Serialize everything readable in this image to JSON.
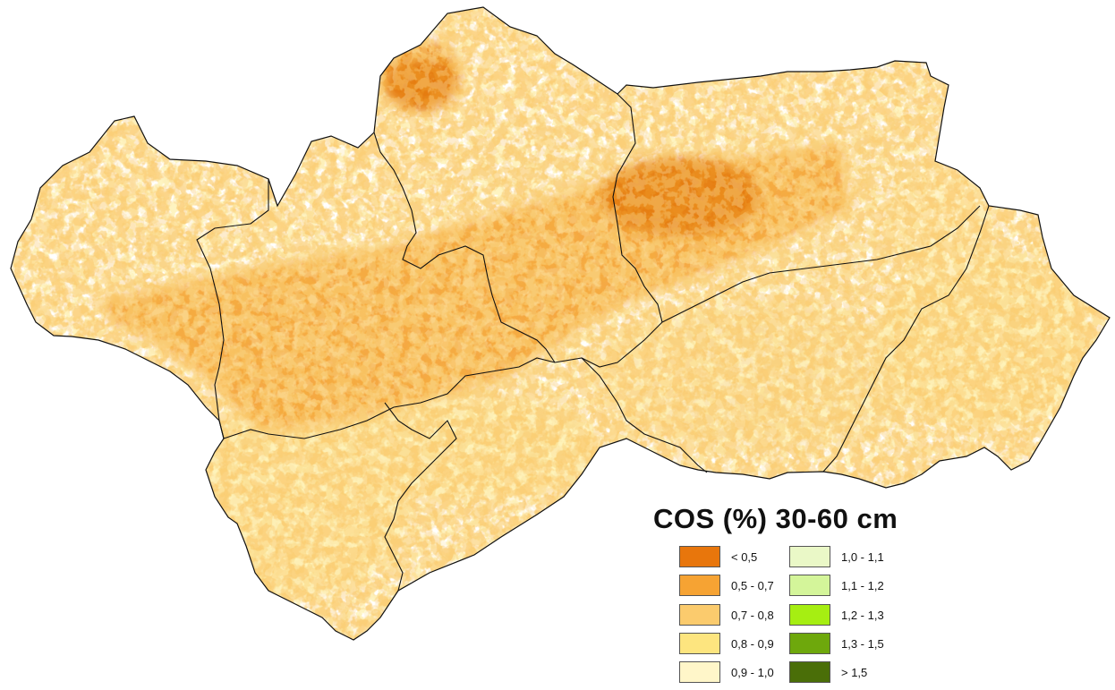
{
  "map": {
    "region_fill": "#ffffff",
    "boundary_color": "#111111"
  },
  "legend": {
    "title": "COS (%) 30-60 cm",
    "items": [
      {
        "label": "< 0,5",
        "color": "#e8760c"
      },
      {
        "label": "0,5 - 0,7",
        "color": "#f6a333"
      },
      {
        "label": "0,7 - 0,8",
        "color": "#fbcb6d"
      },
      {
        "label": "0,8 - 0,9",
        "color": "#fde57f"
      },
      {
        "label": "0,9 - 1,0",
        "color": "#fff6c9"
      },
      {
        "label": "1,0 - 1,1",
        "color": "#eaf8c7"
      },
      {
        "label": "1,1 - 1,2",
        "color": "#d4f59a"
      },
      {
        "label": "1,2 - 1,3",
        "color": "#a6ee12"
      },
      {
        "label": "1,3 - 1,5",
        "color": "#6ea80c"
      },
      {
        "label": "> 1,5",
        "color": "#4a6e08"
      }
    ]
  }
}
